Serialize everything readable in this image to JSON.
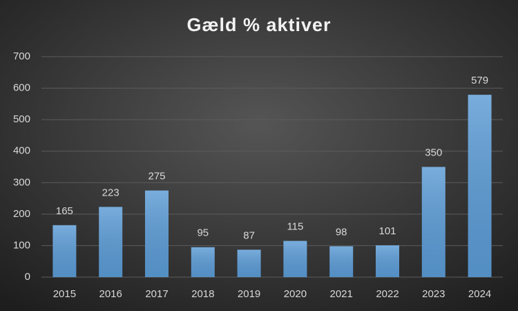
{
  "chart_data": {
    "type": "bar",
    "title": "Gæld % aktiver",
    "categories": [
      "2015",
      "2016",
      "2017",
      "2018",
      "2019",
      "2020",
      "2021",
      "2022",
      "2023",
      "2024"
    ],
    "values": [
      165,
      223,
      275,
      95,
      87,
      115,
      98,
      101,
      350,
      579
    ],
    "color": "#5b9bd5",
    "ylim": [
      0,
      700
    ],
    "yticks": [
      0,
      100,
      200,
      300,
      400,
      500,
      600,
      700
    ],
    "grid": true
  }
}
